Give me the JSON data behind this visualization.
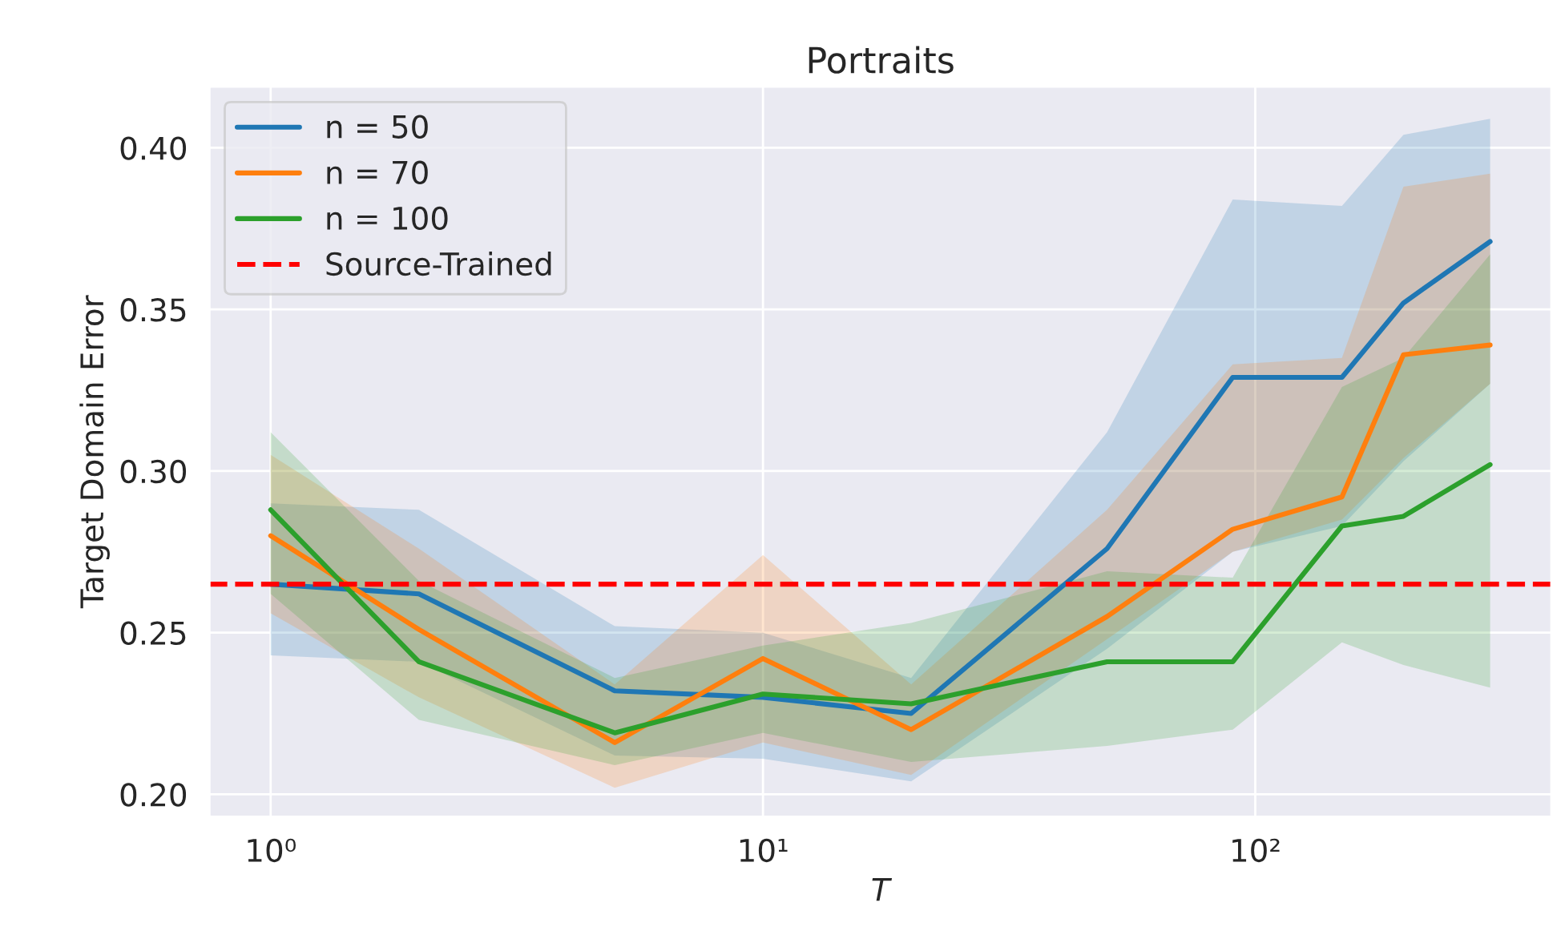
{
  "chart_data": {
    "type": "line",
    "title": "Portraits",
    "xlabel": "T",
    "ylabel": "Target Domain Error",
    "x": [
      1,
      2,
      5,
      10,
      20,
      50,
      90,
      150,
      200,
      300
    ],
    "series": [
      {
        "name": "n = 50",
        "color": "#1f77b4",
        "values": [
          0.265,
          0.262,
          0.232,
          0.23,
          0.225,
          0.276,
          0.329,
          0.329,
          0.352,
          0.371
        ],
        "lower": [
          0.243,
          0.241,
          0.212,
          0.211,
          0.204,
          0.245,
          0.275,
          0.283,
          0.303,
          0.327
        ],
        "upper": [
          0.29,
          0.288,
          0.252,
          0.25,
          0.236,
          0.312,
          0.384,
          0.382,
          0.404,
          0.409
        ]
      },
      {
        "name": "n = 70",
        "color": "#ff7f0e",
        "values": [
          0.28,
          0.251,
          0.216,
          0.242,
          0.22,
          0.255,
          0.282,
          0.292,
          0.336,
          0.339
        ],
        "lower": [
          0.256,
          0.23,
          0.202,
          0.216,
          0.206,
          0.248,
          0.275,
          0.285,
          0.304,
          0.327
        ],
        "upper": [
          0.305,
          0.276,
          0.234,
          0.274,
          0.234,
          0.288,
          0.333,
          0.335,
          0.388,
          0.392
        ]
      },
      {
        "name": "n = 100",
        "color": "#2ca02c",
        "values": [
          0.288,
          0.241,
          0.219,
          0.231,
          0.228,
          0.241,
          0.241,
          0.283,
          0.286,
          0.302
        ],
        "lower": [
          0.262,
          0.223,
          0.209,
          0.219,
          0.21,
          0.215,
          0.22,
          0.247,
          0.24,
          0.233
        ],
        "upper": [
          0.312,
          0.266,
          0.236,
          0.246,
          0.253,
          0.269,
          0.267,
          0.326,
          0.335,
          0.367
        ]
      }
    ],
    "ref_lines": [
      {
        "axis": "y",
        "value": 0.265,
        "label": "Source-Trained",
        "color": "#ff0000",
        "line_style": "dashed"
      }
    ],
    "log": "x",
    "xlim": [
      0.75,
      400
    ],
    "xticks": [
      {
        "value": 1,
        "label": "10⁰"
      },
      {
        "value": 10,
        "label": "10¹"
      },
      {
        "value": 100,
        "label": "10²"
      }
    ],
    "ylim": [
      0.193,
      0.419
    ],
    "yticks": [
      {
        "value": 0.2,
        "label": "0.20"
      },
      {
        "value": 0.25,
        "label": "0.25"
      },
      {
        "value": 0.3,
        "label": "0.30"
      },
      {
        "value": 0.35,
        "label": "0.35"
      },
      {
        "value": 0.4,
        "label": "0.40"
      }
    ],
    "grid": true,
    "legend": "top left"
  }
}
